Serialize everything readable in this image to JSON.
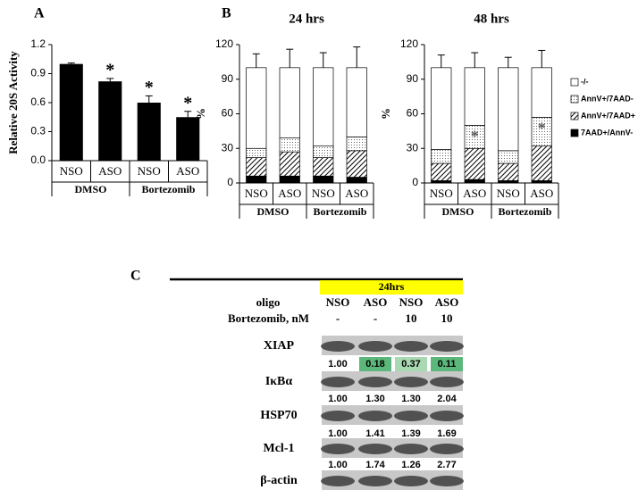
{
  "chart_data": [
    {
      "type": "bar",
      "panel": "A",
      "ylabel": "Relative 20S Activity",
      "categories": [
        "NSO",
        "ASO",
        "NSO",
        "ASO"
      ],
      "groups": [
        "DMSO",
        "Bortezomib"
      ],
      "values": [
        1,
        0.82,
        0.6,
        0.45
      ],
      "errors": [
        0.01,
        0.03,
        0.07,
        0.06
      ],
      "markers": [
        null,
        "*",
        "*",
        "*"
      ],
      "color": "#000000",
      "ylim": [
        0,
        1.2
      ],
      "yticks": [
        {
          "value": 0,
          "label": "0.0"
        },
        0.3,
        0.6,
        0.9,
        1.2
      ]
    },
    {
      "type": "stacked_bar",
      "panel": "B",
      "title": "24 hrs",
      "ylabel": "%",
      "categories": [
        "NSO",
        "ASO",
        "NSO",
        "ASO"
      ],
      "groups": [
        "DMSO",
        "Bortezomib"
      ],
      "series": [
        {
          "color": "#000000",
          "pattern": "solid",
          "values": [
            6,
            6,
            6,
            5
          ]
        },
        {
          "color": "#000000",
          "pattern": "hatch",
          "values": [
            16,
            21,
            16,
            23
          ]
        },
        {
          "color": "#666666",
          "pattern": "dots",
          "values": [
            8,
            12,
            10,
            12
          ],
          "errors": [
            10,
            13,
            12,
            15
          ]
        },
        {
          "color": "#ffffff",
          "pattern": "none",
          "values": [
            70,
            61,
            68,
            60
          ],
          "errors": [
            12,
            16,
            13,
            18
          ]
        }
      ],
      "ylim": [
        0,
        120
      ],
      "yticks": [
        0,
        30,
        60,
        90,
        120
      ]
    },
    {
      "type": "stacked_bar",
      "title": "48 hrs",
      "ylabel": "%",
      "categories": [
        "NSO",
        "ASO",
        "NSO",
        "ASO"
      ],
      "groups": [
        "DMSO",
        "Bortezomib"
      ],
      "series": [
        {
          "name": "7AAD+/AnnV-",
          "color": "#000000",
          "pattern": "solid",
          "values": [
            2,
            3,
            2,
            2
          ]
        },
        {
          "name": "AnnV+/7AAD+",
          "color": "#000000",
          "pattern": "hatch",
          "values": [
            15,
            27,
            15,
            30
          ]
        },
        {
          "name": "AnnV+/7AAD-",
          "color": "#666666",
          "pattern": "dots",
          "values": [
            12,
            20,
            11,
            25
          ],
          "errors": [
            12,
            16,
            10,
            20
          ],
          "markers": [
            null,
            "*",
            null,
            "*"
          ]
        },
        {
          "name": "-/-",
          "color": "#ffffff",
          "pattern": "none",
          "values": [
            71,
            50,
            72,
            43
          ],
          "errors": [
            11,
            13,
            9,
            15
          ]
        }
      ],
      "ylim": [
        0,
        120
      ],
      "yticks": [
        0,
        30,
        60,
        90,
        120
      ],
      "legend": "right"
    }
  ],
  "blot": {
    "panel": "C",
    "time": "24hrs",
    "rows": [
      {
        "label": "oligo",
        "cells": [
          "NSO",
          "ASO",
          "NSO",
          "ASO"
        ]
      },
      {
        "label": "Bortezomib, nM",
        "cells": [
          "-",
          "-",
          "10",
          "10"
        ]
      }
    ],
    "proteins": [
      {
        "name": "XIAP",
        "values": [
          "1.00",
          "0.18",
          "0.37",
          "0.11"
        ],
        "highlight": [
          null,
          "#5cb87a",
          "#a9d9b2",
          "#5cb87a"
        ]
      },
      {
        "name": "IκBα",
        "values": [
          "1.00",
          "1.30",
          "1.30",
          "2.04"
        ]
      },
      {
        "name": "HSP70",
        "values": [
          "1.00",
          "1.41",
          "1.39",
          "1.69"
        ]
      },
      {
        "name": "Mcl-1",
        "values": [
          "1.00",
          "1.74",
          "1.26",
          "2.77"
        ]
      },
      {
        "name": "β-actin"
      }
    ]
  }
}
